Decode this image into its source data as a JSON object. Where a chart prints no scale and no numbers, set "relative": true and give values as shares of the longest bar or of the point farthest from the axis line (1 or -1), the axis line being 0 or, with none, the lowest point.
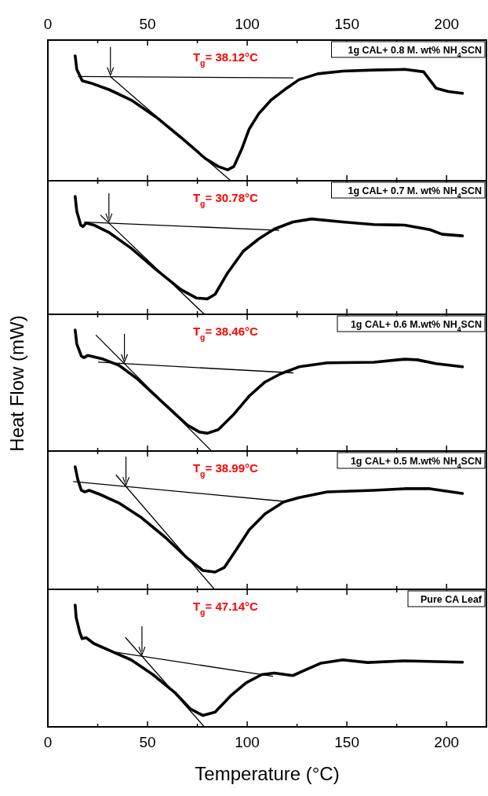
{
  "chart_data": [
    {
      "type": "line",
      "relative": true,
      "title": "1g CAL+ 0.8 M. wt% NH$_{4}$SCN",
      "tick_labels": false,
      "xlim": [
        0,
        220
      ],
      "xticks": [
        0,
        {
          "value": 25,
          "label": null
        },
        50,
        {
          "value": 75,
          "label": null
        },
        100,
        {
          "value": 125,
          "label": null
        },
        150,
        {
          "value": 175,
          "label": null
        },
        200
      ],
      "x2lim": [
        0,
        220
      ],
      "x2ticks": [
        0,
        {
          "value": 25,
          "label": null
        },
        50,
        {
          "value": 75,
          "label": null
        },
        100,
        {
          "value": 125,
          "label": null
        },
        150,
        {
          "value": 175,
          "label": null
        },
        200
      ],
      "annotations": [
        "T$_{g}$= 38.12°C"
      ],
      "series": [
        {
          "color": "#000000",
          "x": [
            13.7,
            14.5,
            17.2,
            21.5,
            30.9,
            41.8,
            54.3,
            66.8,
            79.3,
            85.5,
            90.2,
            93.3,
            97.2,
            101,
            105.8,
            112,
            119.8,
            126,
            135.4,
            148,
            163.5,
            179,
            188.5,
            194.7,
            200.9,
            208
          ],
          "values": [
            1.0,
            0.891,
            0.801,
            0.782,
            0.728,
            0.646,
            0.51,
            0.346,
            0.174,
            0.114,
            0.087,
            0.114,
            0.251,
            0.414,
            0.537,
            0.646,
            0.741,
            0.809,
            0.856,
            0.877,
            0.886,
            0.891,
            0.872,
            0.741,
            0.714,
            0.7
          ]
        },
        {
          "type": "line",
          "color": "#000000",
          "x": [
            31.7,
            91.7
          ],
          "values": [
            0.828,
            0
          ]
        },
        {
          "type": "line",
          "color": "#000000",
          "x": [
            15.3,
            122.9
          ],
          "values": [
            0.834,
            0.823
          ]
        }
      ]
    },
    {
      "type": "line",
      "relative": true,
      "title": "1g CAL+ 0.7 M. wt% NH$_{4}$SCN",
      "tick_labels": false,
      "xlim": [
        0,
        220
      ],
      "xticks": [
        0,
        {
          "value": 25,
          "label": null
        },
        50,
        {
          "value": 75,
          "label": null
        },
        100,
        {
          "value": 125,
          "label": null
        },
        150,
        {
          "value": 175,
          "label": null
        },
        200
      ],
      "annotations": [
        "T$_{g}$= 30.78°C"
      ],
      "series": [
        {
          "color": "#000000",
          "x": [
            13.7,
            14.5,
            16.5,
            17.6,
            19.2,
            23.1,
            30.9,
            41.8,
            54.3,
            66.8,
            74.6,
            80,
            83.9,
            90.2,
            98,
            105.8,
            113.6,
            122.9,
            132.3,
            148,
            163.5,
            179,
            191.6,
            197.8,
            208
          ],
          "values": [
            1.0,
            0.875,
            0.757,
            0.744,
            0.775,
            0.757,
            0.692,
            0.561,
            0.379,
            0.209,
            0.138,
            0.131,
            0.17,
            0.352,
            0.535,
            0.64,
            0.723,
            0.783,
            0.809,
            0.783,
            0.762,
            0.757,
            0.718,
            0.679,
            0.666
          ]
        },
        {
          "type": "line",
          "color": "#000000",
          "x": [
            26.5,
            78.5
          ],
          "values": [
            0.841,
            0
          ]
        },
        {
          "type": "line",
          "color": "#000000",
          "x": [
            18.4,
            115.9
          ],
          "values": [
            0.783,
            0.713
          ]
        }
      ]
    },
    {
      "type": "line",
      "relative": true,
      "title": "1g CAL+ 0.6 M.wt% NH$_{4}$SCN",
      "ylabel": "Heat Flow (mW)",
      "tick_labels": false,
      "xlim": [
        0,
        220
      ],
      "xticks": [
        0,
        {
          "value": 25,
          "label": null
        },
        50,
        {
          "value": 75,
          "label": null
        },
        100,
        {
          "value": 125,
          "label": null
        },
        150,
        {
          "value": 175,
          "label": null
        },
        200
      ],
      "annotations": [
        "T$_{g}$= 38.46°C"
      ],
      "series": [
        {
          "color": "#000000",
          "x": [
            13.7,
            14.5,
            16.8,
            18.1,
            20,
            27.8,
            35.6,
            45,
            57.4,
            69.9,
            76.1,
            80,
            85.5,
            93.3,
            101.1,
            108.9,
            116.7,
            126,
            140.1,
            163.5,
            179,
            185.3,
            194.7,
            208
          ],
          "values": [
            1.0,
            0.886,
            0.785,
            0.772,
            0.79,
            0.759,
            0.709,
            0.595,
            0.405,
            0.215,
            0.157,
            0.147,
            0.177,
            0.304,
            0.456,
            0.57,
            0.638,
            0.696,
            0.729,
            0.734,
            0.759,
            0.754,
            0.722,
            0.696
          ]
        },
        {
          "type": "line",
          "color": "#000000",
          "x": [
            24.2,
            82.1
          ],
          "values": [
            0.957,
            0
          ]
        },
        {
          "type": "line",
          "color": "#000000",
          "x": [
            25.4,
            122.9
          ],
          "values": [
            0.734,
            0.646
          ]
        }
      ]
    },
    {
      "type": "line",
      "relative": true,
      "title": "1g CAL+ 0.5 M.wt% NH$_{4}$SCN",
      "tick_labels": false,
      "xlim": [
        0,
        220
      ],
      "xticks": [
        0,
        {
          "value": 25,
          "label": null
        },
        50,
        {
          "value": 75,
          "label": null
        },
        100,
        {
          "value": 125,
          "label": null
        },
        150,
        {
          "value": 175,
          "label": null
        },
        200
      ],
      "annotations": [
        "T$_{g}$= 38.99°C"
      ],
      "series": [
        {
          "color": "#000000",
          "x": [
            13.7,
            15,
            16.8,
            18.4,
            20.7,
            26.2,
            35.6,
            46.5,
            59,
            69.9,
            77.7,
            83.9,
            88.6,
            94.9,
            101.1,
            108.9,
            118.3,
            126,
            140.1,
            163.5,
            179,
            191.6,
            208
          ],
          "values": [
            1.0,
            0.897,
            0.808,
            0.795,
            0.808,
            0.774,
            0.705,
            0.59,
            0.423,
            0.256,
            0.154,
            0.141,
            0.179,
            0.333,
            0.487,
            0.615,
            0.713,
            0.749,
            0.795,
            0.808,
            0.821,
            0.821,
            0.782
          ]
        },
        {
          "type": "line",
          "color": "#000000",
          "x": [
            34.3,
            83.6
          ],
          "values": [
            0.931,
            0
          ]
        },
        {
          "type": "line",
          "color": "#000000",
          "x": [
            12.9,
            118.3
          ],
          "values": [
            0.879,
            0.718
          ]
        }
      ]
    },
    {
      "type": "line",
      "relative": true,
      "title": "Pure CA Leaf",
      "xlabel": "Temperature (°C)",
      "tick_labels": "x",
      "xlim": [
        0,
        220
      ],
      "xticks": [
        0,
        {
          "value": 25,
          "label": null
        },
        50,
        {
          "value": 75,
          "label": null
        },
        100,
        {
          "value": 125,
          "label": null
        },
        150,
        {
          "value": 175,
          "label": null
        },
        200
      ],
      "annotations": [
        "T$_{g}$= 47.14°C"
      ],
      "series": [
        {
          "color": "#000000",
          "x": [
            13.7,
            14.2,
            16,
            17.2,
            19.2,
            23.1,
            32.4,
            41.8,
            52.7,
            63.7,
            71.5,
            77.7,
            83.9,
            91.7,
            99.5,
            107.3,
            113.6,
            122.9,
            127.6,
            137,
            147.9,
            160.4,
            179,
            208
          ],
          "values": [
            1.0,
            0.898,
            0.777,
            0.724,
            0.732,
            0.684,
            0.617,
            0.55,
            0.429,
            0.282,
            0.147,
            0.094,
            0.121,
            0.255,
            0.362,
            0.429,
            0.442,
            0.421,
            0.456,
            0.523,
            0.55,
            0.528,
            0.542,
            0.531
          ]
        },
        {
          "type": "line",
          "color": "#000000",
          "x": [
            39,
            78.5
          ],
          "values": [
            0.732,
            0
          ]
        },
        {
          "type": "line",
          "color": "#000000",
          "x": [
            32.4,
            112.8
          ],
          "values": [
            0.617,
            0.416
          ]
        }
      ]
    }
  ]
}
